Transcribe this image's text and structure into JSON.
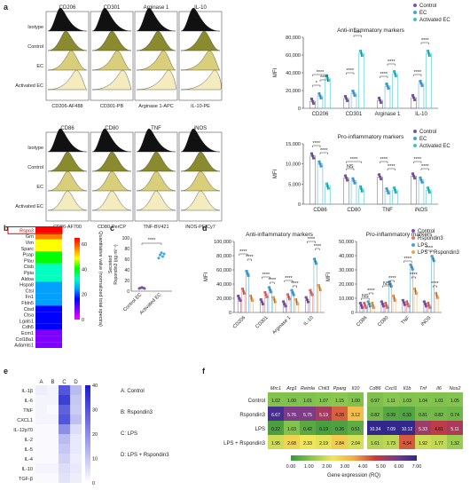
{
  "panel_letters": [
    "a",
    "b",
    "c",
    "d",
    "e",
    "f"
  ],
  "panel_a": {
    "flow_top": {
      "markers": [
        "CD206",
        "CD301",
        "Arginase 1",
        "IL-10"
      ],
      "channels": [
        "CD206-AF488",
        "CD301-PB",
        "Arginase 1-APC",
        "IL-10-PE"
      ],
      "row_labels": [
        "Isotype",
        "Control",
        "EC",
        "Activated EC"
      ]
    },
    "flow_bottom": {
      "markers": [
        "CD86",
        "CD80",
        "TNF",
        "iNOS"
      ],
      "channels": [
        "CD86-AF700",
        "CD80-PerCP",
        "TNF-BV421",
        "iNOS-PE/Cy7"
      ],
      "row_labels": [
        "Isotype",
        "Control",
        "EC",
        "Activated EC"
      ]
    },
    "legend": [
      "Control",
      "EC",
      "Activated EC"
    ],
    "colors": {
      "Control": "#7b52ab",
      "EC": "#3ea6e0",
      "Activated EC": "#33c6cc"
    },
    "sig_stars": "****",
    "sig_ns": "NS",
    "ylabel": "MFI",
    "histo_colors": {
      "isotype": "#111111",
      "control": "#8a8a2e",
      "ec": "#d9cf7a",
      "activated": "#f4ecbf"
    }
  },
  "chart_data": [
    {
      "id": "a-anti",
      "type": "bar",
      "title": "Anti-inflammatory markers",
      "ylabel": "MFI",
      "categories": [
        "CD206",
        "CD301",
        "Arginase 1",
        "IL-10"
      ],
      "ylim": [
        0,
        80000
      ],
      "yticks": [
        "0",
        "20,000",
        "40,000",
        "60,000",
        "80,000"
      ],
      "series": [
        {
          "name": "Control",
          "values": [
            8000,
            11000,
            9000,
            12000
          ]
        },
        {
          "name": "EC",
          "values": [
            14000,
            17000,
            25000,
            28000
          ]
        },
        {
          "name": "Activated EC",
          "values": [
            34000,
            62000,
            39000,
            62000
          ]
        }
      ]
    },
    {
      "id": "a-pro",
      "type": "bar",
      "title": "Pro-inflammatory markers",
      "ylabel": "MFI",
      "categories": [
        "CD86",
        "CD80",
        "TNF",
        "iNOS"
      ],
      "ylim": [
        0,
        15000
      ],
      "yticks": [
        "0",
        "5,000",
        "10,000",
        "15,000"
      ],
      "series": [
        {
          "name": "Control",
          "values": [
            12000,
            6500,
            6800,
            7000
          ]
        },
        {
          "name": "EC",
          "values": [
            10000,
            5800,
            3300,
            6000
          ]
        },
        {
          "name": "Activated EC",
          "values": [
            4500,
            3800,
            3500,
            3500
          ]
        }
      ]
    },
    {
      "id": "b",
      "type": "heatmap",
      "genes": [
        "Rspo3",
        "Grn",
        "Vim",
        "Sparc",
        "Psap",
        "Plau",
        "Ctsb",
        "Ppia",
        "Aldoa",
        "Hspa8",
        "Ctsl",
        "Fn1",
        "Fbln5",
        "Ctsd",
        "Ctsa",
        "Lgals1",
        "Cdh5",
        "Ecm1",
        "Col18a1",
        "Adamts1"
      ],
      "values": [
        65,
        55,
        50,
        45,
        42,
        38,
        35,
        33,
        30,
        28,
        26,
        24,
        22,
        20,
        18,
        16,
        14,
        12,
        10,
        8
      ],
      "colorbar_ticks": [
        "0",
        "20",
        "40",
        "60"
      ],
      "colorbar_label": "Quantitative value (normalized total spectra)"
    },
    {
      "id": "c",
      "type": "scatter",
      "ylabel": "Rspondin3 (pg ml⁻¹)",
      "ylabel2": "Secreted",
      "categories": [
        "Control EC",
        "Activated EC"
      ],
      "ylim": [
        0,
        100
      ],
      "yticks": [
        "0",
        "20",
        "40",
        "60",
        "80",
        "100"
      ],
      "values": [
        [
          5,
          6,
          7,
          6,
          5
        ],
        [
          62,
          68,
          72,
          65,
          70
        ]
      ],
      "sig": "****"
    },
    {
      "id": "d-anti",
      "type": "bar",
      "title": "Anti-inflammatory markers",
      "ylabel": "MFI",
      "categories": [
        "CD206",
        "CD301",
        "Arginase 1",
        "IL-10"
      ],
      "ylim": [
        0,
        100000
      ],
      "yticks": [
        "0",
        "20,000",
        "40,000",
        "60,000",
        "80,000",
        "100,000"
      ],
      "series": [
        {
          "name": "Control",
          "values": [
            20000,
            15000,
            12000,
            18000
          ]
        },
        {
          "name": "Rspondin3",
          "values": [
            30000,
            25000,
            22000,
            28000
          ]
        },
        {
          "name": "LPS",
          "values": [
            55000,
            32000,
            28000,
            72000
          ]
        },
        {
          "name": "LPS + Rspondin3",
          "values": [
            20000,
            18000,
            15000,
            35000
          ]
        }
      ]
    },
    {
      "id": "d-pro",
      "type": "bar",
      "title": "Pro-inflammatory markers",
      "ylabel": "MFI",
      "categories": [
        "CD86",
        "CD80",
        "TNF",
        "iNOS"
      ],
      "ylim": [
        0,
        50000
      ],
      "yticks": [
        "0",
        "10,000",
        "20,000",
        "30,000",
        "40,000",
        "50,000"
      ],
      "series": [
        {
          "name": "Control",
          "values": [
            5000,
            6000,
            7000,
            6000
          ]
        },
        {
          "name": "Rspondin3",
          "values": [
            5000,
            5000,
            6000,
            5000
          ]
        },
        {
          "name": "LPS",
          "values": [
            6000,
            20000,
            32000,
            38000
          ]
        },
        {
          "name": "LPS + Rspondin3",
          "values": [
            5000,
            10000,
            15000,
            12000
          ]
        }
      ]
    },
    {
      "id": "e",
      "type": "heatmap",
      "rows": [
        "IL-1β",
        "IL-6",
        "TNF",
        "CXCL1",
        "IL-12p70",
        "IL-2",
        "IL-5",
        "IL-4",
        "IL-10",
        "TGF-β"
      ],
      "cols": [
        "A",
        "B",
        "C",
        "D"
      ],
      "values": [
        [
          3,
          2,
          30,
          12
        ],
        [
          2,
          2,
          34,
          10
        ],
        [
          2,
          1,
          28,
          9
        ],
        [
          2,
          2,
          30,
          11
        ],
        [
          1,
          1,
          20,
          6
        ],
        [
          1,
          1,
          12,
          4
        ],
        [
          1,
          1,
          10,
          4
        ],
        [
          1,
          1,
          8,
          3
        ],
        [
          2,
          2,
          6,
          4
        ],
        [
          1,
          1,
          5,
          3
        ]
      ],
      "colorbar_ticks": [
        "0",
        "10",
        "20",
        "30",
        "40"
      ],
      "vmax": 40
    },
    {
      "id": "f",
      "type": "table",
      "columns": [
        "Mrc1",
        "Arg1",
        "Retnla",
        "Chil3",
        "Pparg",
        "Il10",
        "Cd86",
        "Cxcl1",
        "Il1b",
        "Tnf",
        "Il6",
        "Nos2"
      ],
      "rows": [
        "Control",
        "Rspondin3",
        "LPS",
        "LPS + Rspondin3"
      ],
      "values": [
        [
          "1.02",
          "1.00",
          "1.01",
          "1.07",
          "1.15",
          "1.00",
          "0.97",
          "1.11",
          "1.03",
          "1.04",
          "1.01",
          "1.05"
        ],
        [
          "6.67",
          "5.76",
          "5.75",
          "5.19",
          "4.28",
          "3.12",
          "0.82",
          "0.39",
          "0.33",
          "0.81",
          "0.82",
          "0.74"
        ],
        [
          "0.22",
          "1.03",
          "0.42",
          "0.19",
          "0.26",
          "0.51",
          "10.34",
          "7.09",
          "10.12",
          "5.33",
          "4.81",
          "5.11"
        ],
        [
          "1.95",
          "2.68",
          "2.33",
          "2.19",
          "2.84",
          "2.04",
          "1.61",
          "1.73",
          "4.34",
          "1.92",
          "1.77",
          "1.32"
        ]
      ],
      "colorbar_ticks": [
        "0.00",
        "1.00",
        "2.00",
        "3.00",
        "4.00",
        "5.00",
        "6.00",
        "7.00"
      ],
      "colorbar_label": "Gene expression (RQ)"
    }
  ],
  "panel_d": {
    "legend": [
      "Control",
      "Rspondin3",
      "LPS",
      "LPS + Rspondin3"
    ],
    "colors": {
      "Control": "#7b52ab",
      "Rspondin3": "#e96f6f",
      "LPS": "#3ea6e0",
      "LPS + Rspondin3": "#f2a24a"
    },
    "sig_stars": "****",
    "sig_ns": "NS"
  },
  "panel_e_legend": [
    "A: Control",
    "B: Rspondin3",
    "C: LPS",
    "D: LPS + Rspondin3"
  ]
}
